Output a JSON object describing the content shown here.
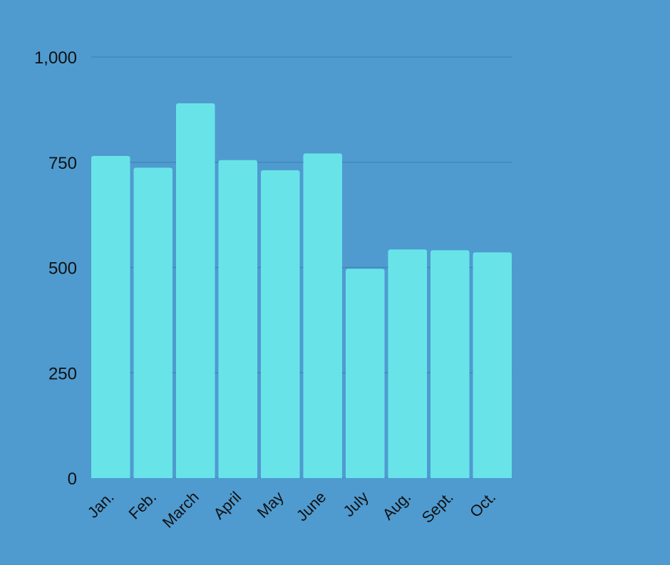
{
  "colors": {
    "background": "#4f9bd0",
    "bar": "#68e4e8",
    "gridline": "#3f84b9",
    "text": "#111111"
  },
  "chart_data": {
    "type": "bar",
    "title": "",
    "xlabel": "",
    "ylabel": "",
    "categories": [
      "Jan.",
      "Feb.",
      "March",
      "April",
      "May",
      "June",
      "July",
      "Aug.",
      "Sept.",
      "Oct."
    ],
    "values": [
      765,
      737,
      890,
      755,
      731,
      771,
      497,
      543,
      541,
      536
    ],
    "ylim": [
      0,
      1000
    ],
    "yticks": [
      0,
      250,
      500,
      750,
      1000
    ],
    "ytick_labels": [
      "0",
      "250",
      "500",
      "750",
      "1,000"
    ],
    "grid": true,
    "legend": "none"
  }
}
